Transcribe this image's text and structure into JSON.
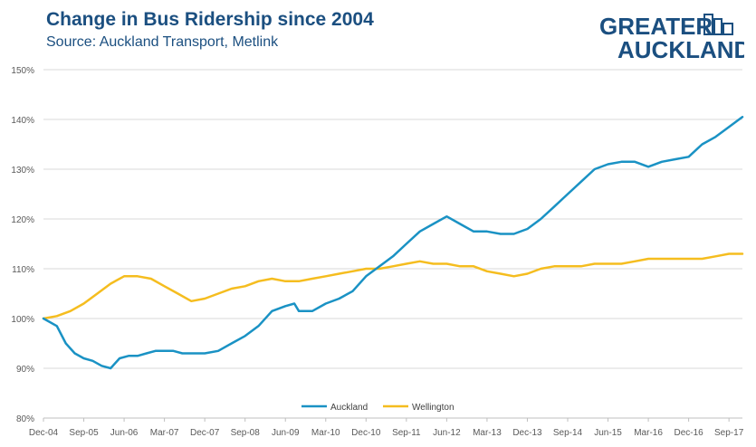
{
  "header": {
    "title": "Change in Bus Ridership since 2004",
    "subtitle": "Source: Auckland Transport, Metlink"
  },
  "logo": {
    "line1": "GREATER",
    "line2": "AUCKLAND",
    "color": "#1b4f80",
    "icon": "city-buildings-icon"
  },
  "colors": {
    "auckland": "#1a92c4",
    "wellington": "#f5bd1f",
    "grid": "#d9d9d9",
    "axis": "#bfbfbf"
  },
  "chart_data": {
    "type": "line",
    "title": "Change in Bus Ridership since 2004",
    "subtitle": "Source: Auckland Transport, Metlink",
    "xlabel": "",
    "ylabel": "",
    "ylim": [
      80,
      150
    ],
    "y_ticks": [
      80,
      90,
      100,
      110,
      120,
      130,
      140,
      150
    ],
    "y_tick_suffix": "%",
    "x_start": "Dec-04",
    "x_end": "Dec-17",
    "x_tick_labels": [
      "Dec-04",
      "Sep-05",
      "Jun-06",
      "Mar-07",
      "Dec-07",
      "Sep-08",
      "Jun-09",
      "Mar-10",
      "Dec-10",
      "Sep-11",
      "Jun-12",
      "Mar-13",
      "Dec-13",
      "Sep-14",
      "Jun-15",
      "Mar-16",
      "Dec-16",
      "Sep-17"
    ],
    "grid": true,
    "legend": "bottom-center",
    "series": [
      {
        "name": "Auckland",
        "color": "#1a92c4",
        "points": [
          [
            "Dec-04",
            100
          ],
          [
            "Mar-05",
            98.5
          ],
          [
            "May-05",
            95
          ],
          [
            "Jul-05",
            93
          ],
          [
            "Sep-05",
            92
          ],
          [
            "Nov-05",
            91.5
          ],
          [
            "Jan-06",
            90.5
          ],
          [
            "Mar-06",
            90
          ],
          [
            "May-06",
            92
          ],
          [
            "Jul-06",
            92.5
          ],
          [
            "Sep-06",
            92.5
          ],
          [
            "Nov-06",
            93
          ],
          [
            "Jan-07",
            93.5
          ],
          [
            "Mar-07",
            93.5
          ],
          [
            "May-07",
            93.5
          ],
          [
            "Jul-07",
            93
          ],
          [
            "Sep-07",
            93
          ],
          [
            "Dec-07",
            93
          ],
          [
            "Mar-08",
            93.5
          ],
          [
            "Jun-08",
            95
          ],
          [
            "Sep-08",
            96.5
          ],
          [
            "Dec-08",
            98.5
          ],
          [
            "Mar-09",
            101.5
          ],
          [
            "Jun-09",
            102.5
          ],
          [
            "Aug-09",
            103
          ],
          [
            "Sep-09",
            101.5
          ],
          [
            "Dec-09",
            101.5
          ],
          [
            "Mar-10",
            103
          ],
          [
            "Jun-10",
            104
          ],
          [
            "Sep-10",
            105.5
          ],
          [
            "Dec-10",
            108.5
          ],
          [
            "Mar-11",
            110.5
          ],
          [
            "Jun-11",
            112.5
          ],
          [
            "Sep-11",
            115
          ],
          [
            "Dec-11",
            117.5
          ],
          [
            "Mar-12",
            119
          ],
          [
            "Jun-12",
            120.5
          ],
          [
            "Sep-12",
            119
          ],
          [
            "Dec-12",
            117.5
          ],
          [
            "Mar-13",
            117.5
          ],
          [
            "Jun-13",
            117
          ],
          [
            "Sep-13",
            117
          ],
          [
            "Dec-13",
            118
          ],
          [
            "Mar-14",
            120
          ],
          [
            "Jun-14",
            122.5
          ],
          [
            "Sep-14",
            125
          ],
          [
            "Dec-14",
            127.5
          ],
          [
            "Mar-15",
            130
          ],
          [
            "Jun-15",
            131
          ],
          [
            "Sep-15",
            131.5
          ],
          [
            "Dec-15",
            131.5
          ],
          [
            "Mar-16",
            130.5
          ],
          [
            "Jun-16",
            131.5
          ],
          [
            "Sep-16",
            132
          ],
          [
            "Dec-16",
            132.5
          ],
          [
            "Mar-17",
            135
          ],
          [
            "Jun-17",
            136.5
          ],
          [
            "Sep-17",
            138.5
          ],
          [
            "Dec-17",
            140.5
          ]
        ]
      },
      {
        "name": "Wellington",
        "color": "#f5bd1f",
        "points": [
          [
            "Dec-04",
            100
          ],
          [
            "Mar-05",
            100.5
          ],
          [
            "Jun-05",
            101.5
          ],
          [
            "Sep-05",
            103
          ],
          [
            "Dec-05",
            105
          ],
          [
            "Mar-06",
            107
          ],
          [
            "Jun-06",
            108.5
          ],
          [
            "Sep-06",
            108.5
          ],
          [
            "Dec-06",
            108
          ],
          [
            "Mar-07",
            106.5
          ],
          [
            "Jun-07",
            105
          ],
          [
            "Sep-07",
            103.5
          ],
          [
            "Dec-07",
            104
          ],
          [
            "Mar-08",
            105
          ],
          [
            "Jun-08",
            106
          ],
          [
            "Sep-08",
            106.5
          ],
          [
            "Dec-08",
            107.5
          ],
          [
            "Mar-09",
            108
          ],
          [
            "Jun-09",
            107.5
          ],
          [
            "Sep-09",
            107.5
          ],
          [
            "Dec-09",
            108
          ],
          [
            "Mar-10",
            108.5
          ],
          [
            "Jun-10",
            109
          ],
          [
            "Sep-10",
            109.5
          ],
          [
            "Dec-10",
            110
          ],
          [
            "Mar-11",
            110
          ],
          [
            "Jun-11",
            110.5
          ],
          [
            "Sep-11",
            111
          ],
          [
            "Dec-11",
            111.5
          ],
          [
            "Mar-12",
            111
          ],
          [
            "Jun-12",
            111
          ],
          [
            "Sep-12",
            110.5
          ],
          [
            "Dec-12",
            110.5
          ],
          [
            "Mar-13",
            109.5
          ],
          [
            "Jun-13",
            109
          ],
          [
            "Sep-13",
            108.5
          ],
          [
            "Dec-13",
            109
          ],
          [
            "Mar-14",
            110
          ],
          [
            "Jun-14",
            110.5
          ],
          [
            "Sep-14",
            110.5
          ],
          [
            "Dec-14",
            110.5
          ],
          [
            "Mar-15",
            111
          ],
          [
            "Jun-15",
            111
          ],
          [
            "Sep-15",
            111
          ],
          [
            "Dec-15",
            111.5
          ],
          [
            "Mar-16",
            112
          ],
          [
            "Jun-16",
            112
          ],
          [
            "Sep-16",
            112
          ],
          [
            "Dec-16",
            112
          ],
          [
            "Mar-17",
            112
          ],
          [
            "Jun-17",
            112.5
          ],
          [
            "Sep-17",
            113
          ],
          [
            "Dec-17",
            113
          ]
        ]
      }
    ]
  }
}
